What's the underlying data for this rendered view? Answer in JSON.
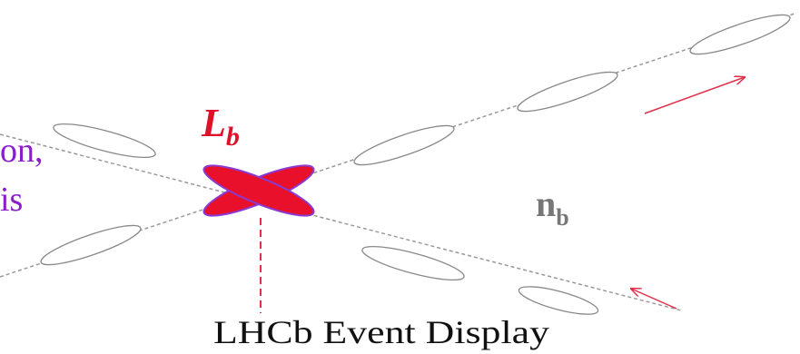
{
  "labels": {
    "left_line1": "on,",
    "left_line2": "is",
    "lambda": "L",
    "lambda_sub": "b",
    "neutrino": "n",
    "neutrino_sub": "b",
    "caption": "LHCb Event Display"
  }
}
